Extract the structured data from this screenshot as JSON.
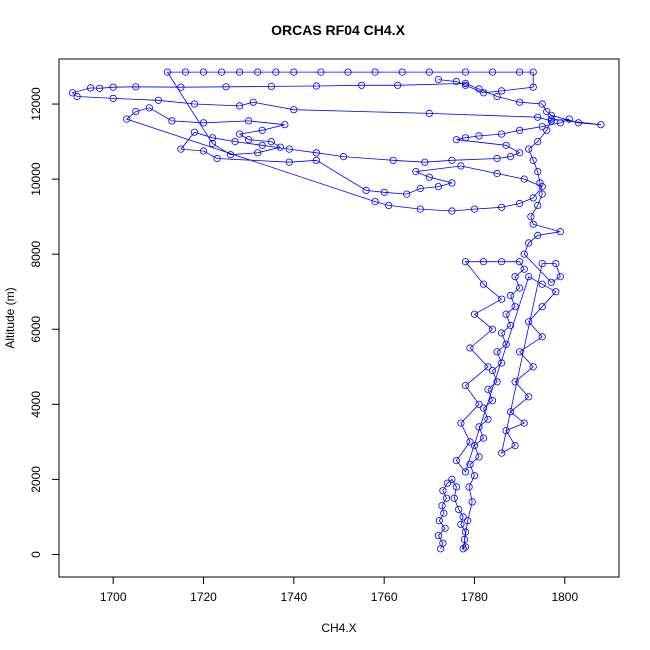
{
  "chart_data": {
    "type": "scatter",
    "title": "ORCAS RF04 CH4.X",
    "xlabel": "CH4.X",
    "ylabel": "Altitude (m)",
    "xlim": [
      1688,
      1812
    ],
    "ylim": [
      -600,
      13200
    ],
    "xticks": [
      1700,
      1720,
      1740,
      1760,
      1780,
      1800
    ],
    "yticks": [
      0,
      2000,
      4000,
      6000,
      8000,
      10000,
      12000
    ],
    "grid": false,
    "legend": "none",
    "point_style": "open-circle",
    "connect_points": true,
    "series_color": "#0000ff",
    "series": [
      {
        "points": [
          [
            1772.5,
            150
          ],
          [
            1773.0,
            300
          ],
          [
            1772.0,
            500
          ],
          [
            1773.5,
            700
          ],
          [
            1772.2,
            900
          ],
          [
            1773.2,
            1100
          ],
          [
            1772.8,
            1300
          ],
          [
            1773.8,
            1500
          ],
          [
            1773.0,
            1700
          ],
          [
            1774.0,
            1900
          ],
          [
            1775.0,
            2000
          ],
          [
            1776.0,
            1800
          ],
          [
            1775.5,
            1500
          ],
          [
            1776.5,
            1200
          ],
          [
            1777.5,
            1000
          ],
          [
            1777.0,
            800
          ],
          [
            1778.0,
            600
          ],
          [
            1777.8,
            400
          ],
          [
            1778.0,
            200
          ],
          [
            1777.5,
            150
          ],
          [
            1778.5,
            900
          ],
          [
            1779.5,
            1400
          ],
          [
            1778.8,
            1800
          ],
          [
            1780.0,
            2100
          ],
          [
            1779.0,
            2400
          ],
          [
            1781.0,
            2600
          ],
          [
            1780.0,
            2900
          ],
          [
            1782.0,
            3100
          ],
          [
            1781.0,
            3400
          ],
          [
            1783.0,
            3600
          ],
          [
            1782.0,
            3900
          ],
          [
            1784.0,
            4100
          ],
          [
            1783.0,
            4400
          ],
          [
            1785.0,
            4600
          ],
          [
            1784.0,
            4900
          ],
          [
            1786.0,
            5100
          ],
          [
            1785.0,
            5400
          ],
          [
            1787.0,
            5600
          ],
          [
            1786.0,
            5900
          ],
          [
            1788.0,
            6100
          ],
          [
            1787.0,
            6400
          ],
          [
            1789.0,
            6600
          ],
          [
            1788.0,
            6900
          ],
          [
            1790.0,
            7100
          ],
          [
            1789.0,
            7400
          ],
          [
            1791.0,
            7600
          ],
          [
            1790.0,
            7800
          ],
          [
            1786.0,
            7800
          ],
          [
            1782.0,
            7800
          ],
          [
            1778.0,
            7800
          ],
          [
            1782.0,
            7200
          ],
          [
            1786.0,
            6800
          ],
          [
            1780.0,
            6400
          ],
          [
            1784.0,
            6000
          ],
          [
            1779.0,
            5500
          ],
          [
            1783.0,
            5000
          ],
          [
            1778.0,
            4500
          ],
          [
            1781.0,
            4000
          ],
          [
            1777.0,
            3500
          ],
          [
            1779.0,
            3000
          ],
          [
            1776.0,
            2500
          ],
          [
            1778.0,
            2200
          ],
          [
            1792.0,
            7400
          ],
          [
            1795.0,
            7200
          ],
          [
            1798.0,
            7000
          ],
          [
            1795.0,
            6600
          ],
          [
            1792.0,
            6200
          ],
          [
            1795.0,
            5800
          ],
          [
            1790.0,
            5400
          ],
          [
            1793.0,
            5000
          ],
          [
            1789.0,
            4600
          ],
          [
            1792.0,
            4200
          ],
          [
            1788.0,
            3800
          ],
          [
            1791.0,
            3500
          ],
          [
            1787.0,
            3300
          ],
          [
            1789.0,
            2900
          ],
          [
            1786.0,
            2700
          ],
          [
            1795.0,
            7750
          ],
          [
            1798.0,
            7750
          ],
          [
            1799.0,
            7400
          ],
          [
            1797.0,
            7250
          ],
          [
            1791.0,
            8000
          ],
          [
            1792.0,
            8300
          ],
          [
            1794.0,
            8500
          ],
          [
            1799.0,
            8600
          ],
          [
            1793.0,
            8800
          ],
          [
            1792.5,
            9000
          ],
          [
            1794.0,
            9300
          ],
          [
            1795.0,
            9600
          ],
          [
            1794.5,
            9900
          ],
          [
            1794.0,
            10200
          ],
          [
            1793.0,
            10500
          ],
          [
            1792.0,
            10800
          ],
          [
            1794.0,
            11000
          ],
          [
            1796.0,
            11300
          ],
          [
            1797.0,
            11600
          ],
          [
            1808.0,
            11450
          ],
          [
            1803.0,
            11500
          ],
          [
            1797.0,
            11700
          ],
          [
            1796.0,
            11800
          ],
          [
            1795.0,
            12000
          ],
          [
            1790.0,
            12050
          ],
          [
            1785.0,
            12200
          ],
          [
            1781.0,
            12400
          ],
          [
            1778.0,
            12550
          ],
          [
            1763.0,
            12500
          ],
          [
            1755.0,
            12500
          ],
          [
            1745.0,
            12480
          ],
          [
            1735.0,
            12470
          ],
          [
            1725.0,
            12460
          ],
          [
            1715.0,
            12450
          ],
          [
            1705.0,
            12460
          ],
          [
            1700.0,
            12450
          ],
          [
            1697.0,
            12420
          ],
          [
            1695.0,
            12430
          ],
          [
            1691.0,
            12300
          ],
          [
            1692.0,
            12200
          ],
          [
            1700.0,
            12150
          ],
          [
            1710.0,
            12100
          ],
          [
            1718.0,
            12000
          ],
          [
            1728.0,
            11950
          ],
          [
            1731.0,
            12050
          ],
          [
            1740.0,
            11850
          ],
          [
            1770.0,
            11750
          ],
          [
            1794.0,
            11650
          ],
          [
            1797.0,
            11550
          ],
          [
            1801.0,
            11600
          ],
          [
            1799.0,
            11500
          ],
          [
            1795.0,
            11400
          ],
          [
            1790.0,
            11300
          ],
          [
            1786.0,
            11200
          ],
          [
            1781.0,
            11150
          ],
          [
            1778.0,
            11100
          ],
          [
            1776.0,
            11050
          ],
          [
            1787.0,
            10900
          ],
          [
            1790.0,
            10700
          ],
          [
            1788.0,
            10600
          ],
          [
            1785.0,
            10550
          ],
          [
            1775.0,
            10500
          ],
          [
            1769.0,
            10450
          ],
          [
            1762.0,
            10500
          ],
          [
            1751.0,
            10600
          ],
          [
            1745.0,
            10700
          ],
          [
            1739.0,
            10800
          ],
          [
            1733.0,
            10900
          ],
          [
            1727.0,
            11000
          ],
          [
            1722.0,
            11100
          ],
          [
            1718.0,
            11250
          ],
          [
            1715.0,
            10800
          ],
          [
            1720.0,
            10750
          ],
          [
            1723.0,
            10550
          ],
          [
            1739.0,
            10450
          ],
          [
            1745.0,
            10500
          ],
          [
            1756.0,
            9700
          ],
          [
            1760.0,
            9650
          ],
          [
            1765.0,
            9600
          ],
          [
            1768.0,
            9750
          ],
          [
            1772.0,
            9800
          ],
          [
            1775.0,
            9900
          ],
          [
            1770.0,
            10050
          ],
          [
            1767.0,
            10200
          ],
          [
            1777.0,
            10350
          ],
          [
            1785.0,
            10150
          ],
          [
            1791.0,
            10000
          ],
          [
            1795.0,
            9800
          ],
          [
            1793.0,
            9500
          ],
          [
            1790.0,
            9350
          ],
          [
            1786.0,
            9250
          ],
          [
            1780.0,
            9200
          ],
          [
            1775.0,
            9150
          ],
          [
            1768.0,
            9200
          ],
          [
            1761.0,
            9300
          ],
          [
            1758.0,
            9400
          ],
          [
            1703.0,
            11600
          ],
          [
            1705.0,
            11800
          ],
          [
            1708.0,
            11900
          ],
          [
            1713.0,
            11550
          ],
          [
            1720.0,
            11500
          ],
          [
            1730.0,
            11550
          ],
          [
            1738.0,
            11450
          ],
          [
            1733.0,
            11300
          ],
          [
            1728.0,
            11200
          ],
          [
            1730.0,
            11050
          ],
          [
            1735.0,
            11000
          ],
          [
            1737.0,
            10850
          ],
          [
            1732.0,
            10700
          ],
          [
            1726.0,
            10650
          ],
          [
            1722.0,
            10950
          ],
          [
            1712.0,
            12850
          ],
          [
            1716.0,
            12850
          ],
          [
            1720.0,
            12850
          ],
          [
            1724.0,
            12850
          ],
          [
            1728.0,
            12850
          ],
          [
            1732.0,
            12850
          ],
          [
            1736.0,
            12850
          ],
          [
            1740.0,
            12850
          ],
          [
            1746.0,
            12850
          ],
          [
            1752.0,
            12850
          ],
          [
            1758.0,
            12850
          ],
          [
            1764.0,
            12850
          ],
          [
            1770.0,
            12850
          ],
          [
            1778.0,
            12850
          ],
          [
            1784.0,
            12850
          ],
          [
            1790.0,
            12850
          ],
          [
            1793.0,
            12850
          ],
          [
            1793.0,
            12450
          ],
          [
            1786.0,
            12350
          ],
          [
            1782.0,
            12300
          ],
          [
            1778.0,
            12500
          ],
          [
            1776.0,
            12600
          ],
          [
            1772.0,
            12650
          ]
        ]
      }
    ]
  }
}
